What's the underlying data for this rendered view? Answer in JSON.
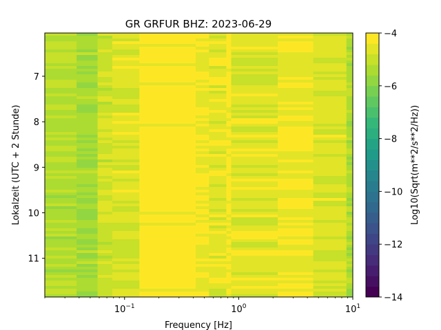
{
  "chart_data": {
    "type": "heatmap",
    "title": "GR GRFUR  BHZ: 2023-06-29",
    "xlabel": "Frequency [Hz]",
    "ylabel": "Lokalzeit (UTC + 2 Stunde)",
    "colorbar_label": "Log10(Sqrt(m**2/s**2/Hz))",
    "x_scale": "log",
    "xlim": [
      0.02,
      10
    ],
    "ylim": [
      11.85,
      6.05
    ],
    "y_inverted": true,
    "x_ticks": [
      {
        "value": 0.1,
        "base": "10",
        "exp": "−1"
      },
      {
        "value": 1,
        "base": "10",
        "exp": "0"
      },
      {
        "value": 10,
        "base": "10",
        "exp": "1"
      }
    ],
    "y_ticks": [
      {
        "value": 7,
        "label": "7"
      },
      {
        "value": 8,
        "label": "8"
      },
      {
        "value": 9,
        "label": "9"
      },
      {
        "value": 10,
        "label": "10"
      },
      {
        "value": 11,
        "label": "11"
      }
    ],
    "colorbar": {
      "range": [
        -14,
        -4
      ],
      "levels": 25,
      "colormap": "viridis",
      "ticks": [
        {
          "value": -4,
          "label": "−4"
        },
        {
          "value": -6,
          "label": "−6"
        },
        {
          "value": -8,
          "label": "−8"
        },
        {
          "value": -10,
          "label": "−10"
        },
        {
          "value": -12,
          "label": "−12"
        },
        {
          "value": -14,
          "label": "−14"
        }
      ]
    },
    "bands": [
      {
        "f_min": 0.02,
        "f_max": 0.038,
        "value": -5.3
      },
      {
        "f_min": 0.038,
        "f_max": 0.058,
        "value": -5.5
      },
      {
        "f_min": 0.058,
        "f_max": 0.078,
        "value": -4.9
      },
      {
        "f_min": 0.078,
        "f_max": 0.135,
        "value": -4.7
      },
      {
        "f_min": 0.135,
        "f_max": 0.42,
        "value": -4.1
      },
      {
        "f_min": 0.42,
        "f_max": 0.55,
        "value": -4.4
      },
      {
        "f_min": 0.55,
        "f_max": 0.78,
        "value": -4.6
      },
      {
        "f_min": 0.78,
        "f_max": 0.86,
        "value": -4.2
      },
      {
        "f_min": 0.86,
        "f_max": 2.2,
        "value": -4.6
      },
      {
        "f_min": 2.2,
        "f_max": 4.5,
        "value": -4.45
      },
      {
        "f_min": 4.5,
        "f_max": 8.8,
        "value": -4.7
      },
      {
        "f_min": 8.8,
        "f_max": 10,
        "value": -5.4
      }
    ]
  }
}
